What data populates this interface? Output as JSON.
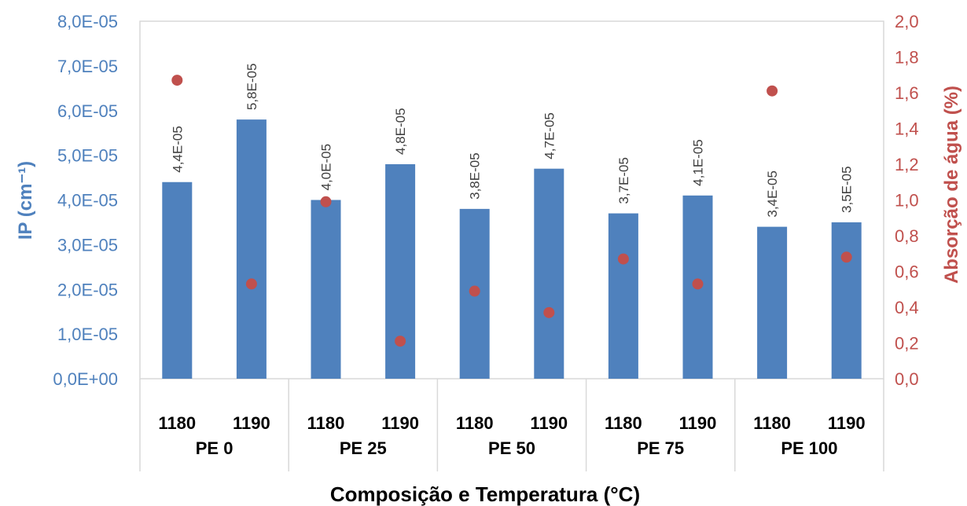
{
  "chart_data": {
    "type": "bar",
    "xlabel": "Composição e Temperatura (°C)",
    "ylabel": "IP (cm⁻¹)",
    "y2label": "Absorção de água (%)",
    "ylim": [
      0,
      8e-05
    ],
    "y2lim": [
      0,
      2.0
    ],
    "yticks": [
      "0,0E+00",
      "1,0E-05",
      "2,0E-05",
      "3,0E-05",
      "4,0E-05",
      "5,0E-05",
      "6,0E-05",
      "7,0E-05",
      "8,0E-05"
    ],
    "y2ticks": [
      "0,0",
      "0,2",
      "0,4",
      "0,6",
      "0,8",
      "1,0",
      "1,2",
      "1,4",
      "1,6",
      "1,8",
      "2,0"
    ],
    "groups": [
      "PE 0",
      "PE 25",
      "PE 50",
      "PE 75",
      "PE 100"
    ],
    "categories": [
      "1180",
      "1190",
      "1180",
      "1190",
      "1180",
      "1190",
      "1180",
      "1190",
      "1180",
      "1190"
    ],
    "series": [
      {
        "kind": "bar",
        "axis": "left",
        "color": "#4f81bd",
        "values": [
          4.4e-05,
          5.8e-05,
          4e-05,
          4.8e-05,
          3.8e-05,
          4.7e-05,
          3.7e-05,
          4.1e-05,
          3.4e-05,
          3.5e-05
        ],
        "labels": [
          "4,4E-05",
          "5,8E-05",
          "4,0E-05",
          "4,8E-05",
          "3,8E-05",
          "4,7E-05",
          "3,7E-05",
          "4,1E-05",
          "3,4E-05",
          "3,5E-05"
        ]
      },
      {
        "kind": "scatter",
        "axis": "right",
        "color": "#c0504d",
        "values": [
          1.67,
          0.53,
          0.99,
          0.21,
          0.49,
          0.37,
          0.67,
          0.53,
          1.61,
          0.68
        ]
      }
    ],
    "grid": false,
    "legend": "none"
  }
}
